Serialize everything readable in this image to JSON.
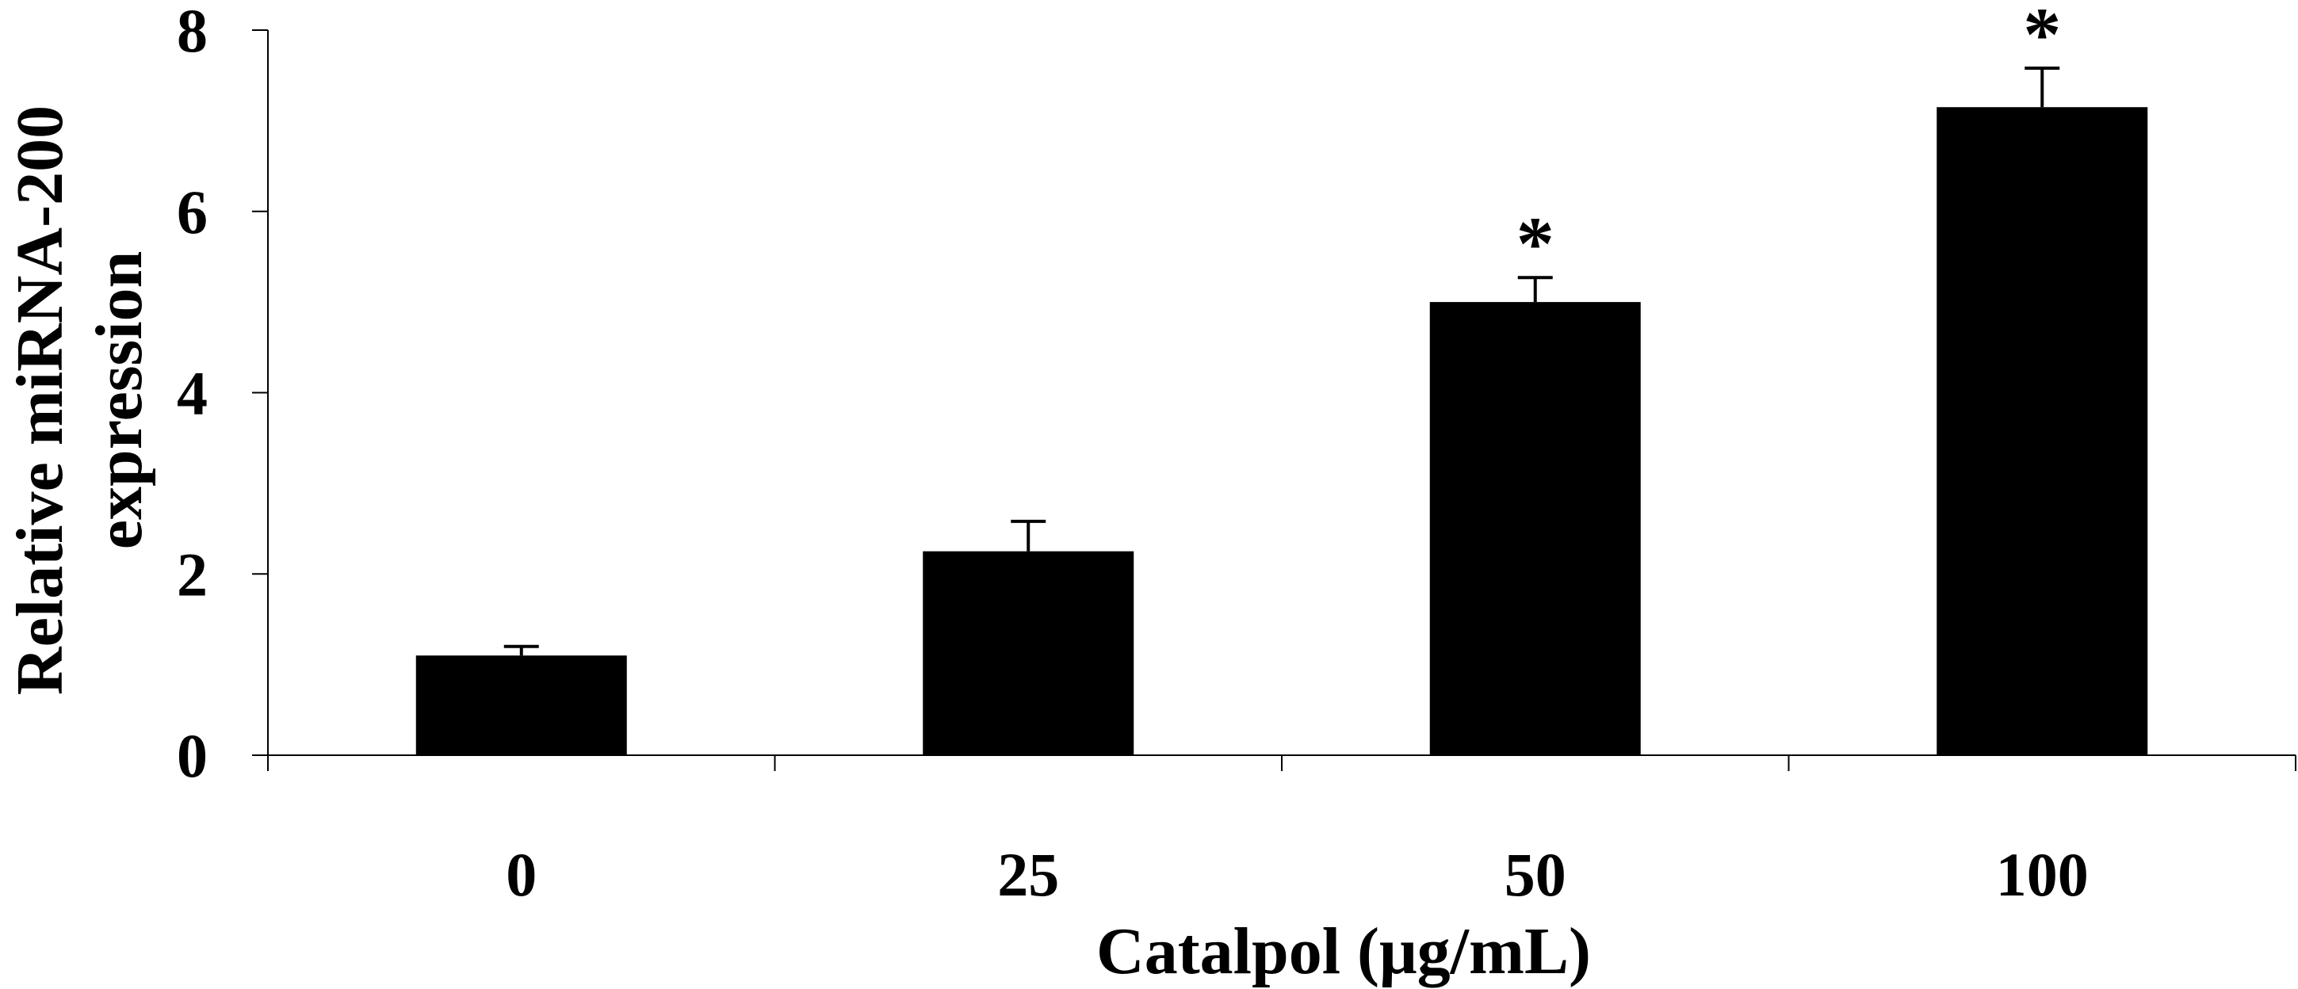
{
  "chart_data": {
    "type": "bar",
    "title": "",
    "xlabel": "Catalpol (μg/mL)",
    "ylabel_line1": "Relative miRNA-200",
    "ylabel_line2": "expression",
    "categories": [
      "0",
      "25",
      "50",
      "100"
    ],
    "values": [
      1.1,
      2.25,
      5.0,
      7.15
    ],
    "errors": [
      0.1,
      0.33,
      0.27,
      0.43
    ],
    "significance": [
      "",
      "",
      "*",
      "*"
    ],
    "ylim": [
      0,
      8
    ],
    "yticks": [
      0,
      2,
      4,
      6,
      8
    ],
    "ytick_labels": [
      "0",
      "2",
      "4",
      "6",
      "8"
    ],
    "bar_color": "#000000",
    "grid": false,
    "legend": "none"
  }
}
